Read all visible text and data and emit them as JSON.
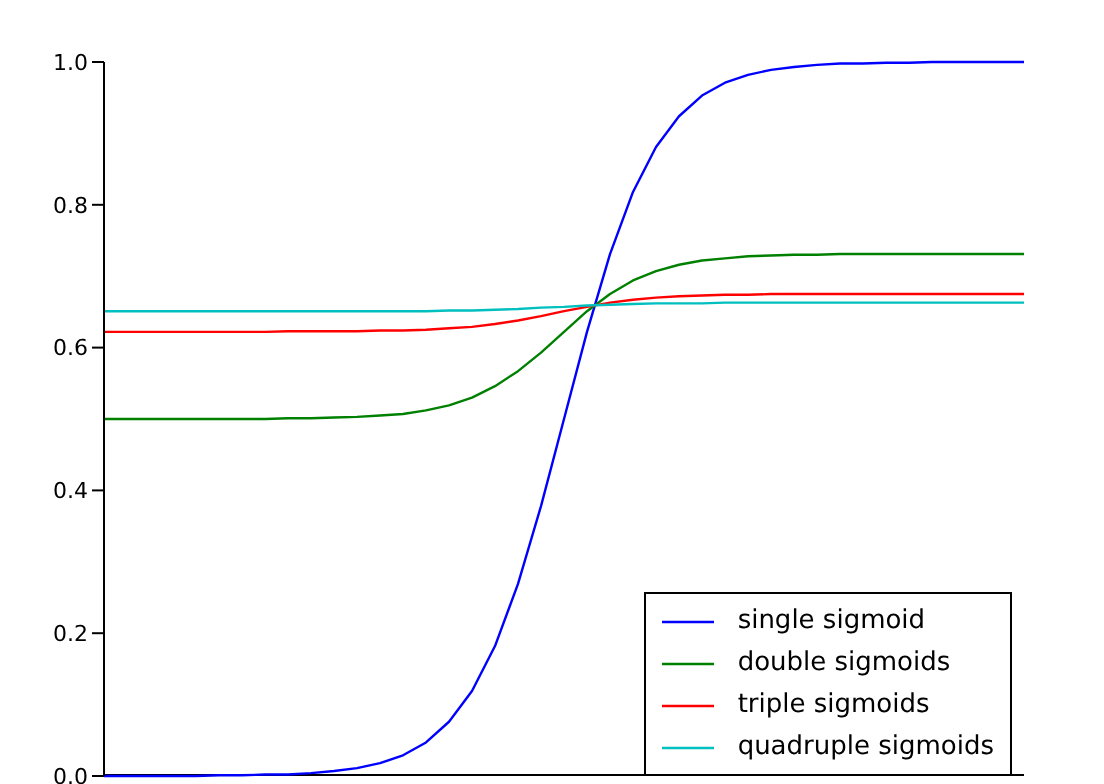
{
  "chart_data": {
    "type": "line",
    "categories": [
      null,
      null,
      null,
      null,
      null,
      null,
      null,
      null,
      null,
      null,
      null,
      null,
      null,
      null,
      null,
      null,
      null,
      null,
      null,
      null,
      null,
      null,
      null,
      null,
      null,
      null,
      null,
      null,
      null,
      null,
      null,
      null,
      null,
      null,
      null,
      null,
      null,
      null,
      null,
      null,
      null
    ],
    "series": [
      {
        "name": "single sigmoid",
        "color": "#0000ff",
        "values": [
          0.0,
          0.0,
          0.0,
          0.0,
          0.0,
          0.001,
          0.001,
          0.002,
          0.002,
          0.004,
          0.007,
          0.011,
          0.018,
          0.029,
          0.047,
          0.076,
          0.119,
          0.182,
          0.269,
          0.378,
          0.5,
          0.622,
          0.731,
          0.818,
          0.881,
          0.924,
          0.953,
          0.971,
          0.982,
          0.989,
          0.993,
          0.996,
          0.998,
          0.998,
          0.999,
          0.999,
          1.0,
          1.0,
          1.0,
          1.0,
          1.0
        ]
      },
      {
        "name": "double sigmoids",
        "color": "#008000",
        "values": [
          0.5,
          0.5,
          0.5,
          0.5,
          0.5,
          0.5,
          0.5,
          0.5,
          0.501,
          0.501,
          0.502,
          0.503,
          0.505,
          0.507,
          0.512,
          0.519,
          0.53,
          0.546,
          0.567,
          0.593,
          0.622,
          0.651,
          0.675,
          0.694,
          0.707,
          0.716,
          0.722,
          0.725,
          0.728,
          0.729,
          0.73,
          0.73,
          0.731,
          0.731,
          0.731,
          0.731,
          0.731,
          0.731,
          0.731,
          0.731,
          0.731
        ]
      },
      {
        "name": "triple sigmoids",
        "color": "#ff0000",
        "values": [
          0.622,
          0.622,
          0.622,
          0.622,
          0.622,
          0.622,
          0.622,
          0.622,
          0.623,
          0.623,
          0.623,
          0.623,
          0.624,
          0.624,
          0.625,
          0.627,
          0.629,
          0.633,
          0.638,
          0.644,
          0.651,
          0.657,
          0.663,
          0.667,
          0.67,
          0.672,
          0.673,
          0.674,
          0.674,
          0.675,
          0.675,
          0.675,
          0.675,
          0.675,
          0.675,
          0.675,
          0.675,
          0.675,
          0.675,
          0.675,
          0.675
        ]
      },
      {
        "name": "quadruple sigmoids",
        "color": "#00bfbf",
        "values": [
          0.651,
          0.651,
          0.651,
          0.651,
          0.651,
          0.651,
          0.651,
          0.651,
          0.651,
          0.651,
          0.651,
          0.651,
          0.651,
          0.651,
          0.651,
          0.652,
          0.652,
          0.653,
          0.654,
          0.656,
          0.657,
          0.659,
          0.66,
          0.661,
          0.662,
          0.662,
          0.662,
          0.663,
          0.663,
          0.663,
          0.663,
          0.663,
          0.663,
          0.663,
          0.663,
          0.663,
          0.663,
          0.663,
          0.663,
          0.663,
          0.663
        ]
      }
    ],
    "ylim": [
      0,
      1
    ],
    "yticks": [
      {
        "value": 0,
        "label": "0.0"
      },
      0.2,
      0.4,
      0.6,
      0.8,
      {
        "value": 1,
        "label": "1.0"
      }
    ],
    "tick_labels": "y",
    "legend": "bottom right",
    "line_style": "solid",
    "marker": "none"
  }
}
